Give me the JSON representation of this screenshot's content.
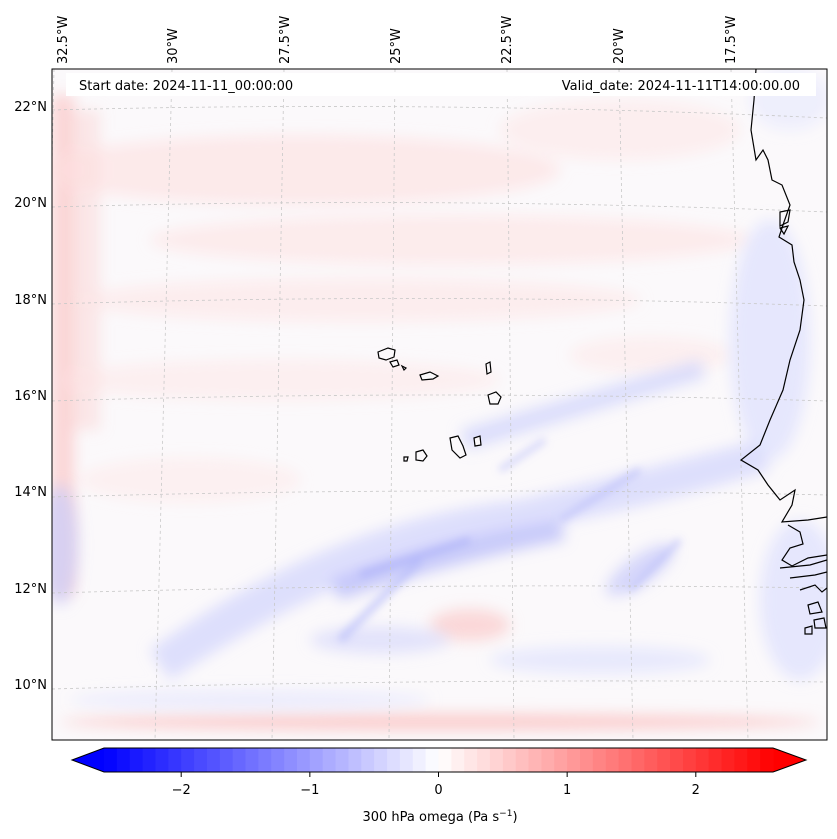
{
  "map": {
    "projection": "lambert-conformal",
    "start_date_text": "Start date: 2024-11-11_00:00:00",
    "valid_date_text": "Valid_date: 2024-11-11T14:00:00.00",
    "longitude_labels": [
      "32.5°W",
      "30°W",
      "27.5°W",
      "25°W",
      "22.5°W",
      "20°W",
      "17.5°W"
    ],
    "latitude_labels": [
      "22°N",
      "20°N",
      "18°N",
      "16°N",
      "14°N",
      "12°N",
      "10°N"
    ],
    "field": "300 hPa omega",
    "land_features": [
      "Cape Verde Islands",
      "West African coastline"
    ]
  },
  "colorbar": {
    "label_main": "300 hPa omega (Pa s",
    "label_exp": "−1",
    "label_close": ")",
    "ticks": [
      "−2",
      "−1",
      "0",
      "1",
      "2"
    ],
    "tick_values": [
      -2,
      -1,
      0,
      1,
      2
    ],
    "range": [
      -2.6,
      2.6
    ],
    "extend": "both",
    "colormap": "bwr",
    "color_min": "#0000ff",
    "color_mid": "#ffffff",
    "color_max": "#ff0000"
  }
}
